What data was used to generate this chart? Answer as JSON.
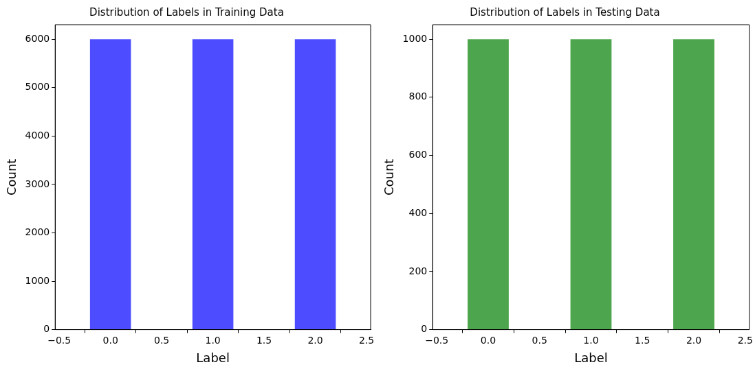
{
  "chart_data": [
    {
      "type": "bar",
      "title": "Distribution of Labels in Training Data",
      "xlabel": "Label",
      "ylabel": "Count",
      "x": [
        0,
        1,
        2
      ],
      "values": [
        6000,
        6000,
        6000
      ],
      "color": "#4d4dff",
      "xlim": [
        -0.54,
        2.54
      ],
      "xticks": [
        {
          "value": -0.5,
          "label": "−0.5"
        },
        {
          "value": 0,
          "label": "0.0"
        },
        {
          "value": 0.5,
          "label": "0.5"
        },
        {
          "value": 1,
          "label": "1.0"
        },
        {
          "value": 1.5,
          "label": "1.5"
        },
        {
          "value": 2,
          "label": "2.0"
        },
        {
          "value": 2.5,
          "label": "2.5"
        }
      ],
      "ylim": [
        0,
        6300
      ],
      "yticks": [
        0,
        1000,
        2000,
        3000,
        4000,
        5000,
        6000
      ],
      "grid": false
    },
    {
      "type": "bar",
      "title": "Distribution of Labels in Testing Data",
      "xlabel": "Label",
      "ylabel": "Count",
      "x": [
        0,
        1,
        2
      ],
      "values": [
        1000,
        1000,
        1000
      ],
      "color": "#4da64d",
      "xlim": [
        -0.54,
        2.54
      ],
      "xticks": [
        {
          "value": -0.5,
          "label": "−0.5"
        },
        {
          "value": 0,
          "label": "0.0"
        },
        {
          "value": 0.5,
          "label": "0.5"
        },
        {
          "value": 1,
          "label": "1.0"
        },
        {
          "value": 1.5,
          "label": "1.5"
        },
        {
          "value": 2,
          "label": "2.0"
        },
        {
          "value": 2.5,
          "label": "2.5"
        }
      ],
      "ylim": [
        0,
        1050
      ],
      "yticks": [
        0,
        200,
        400,
        600,
        800,
        1000
      ],
      "grid": false
    }
  ]
}
